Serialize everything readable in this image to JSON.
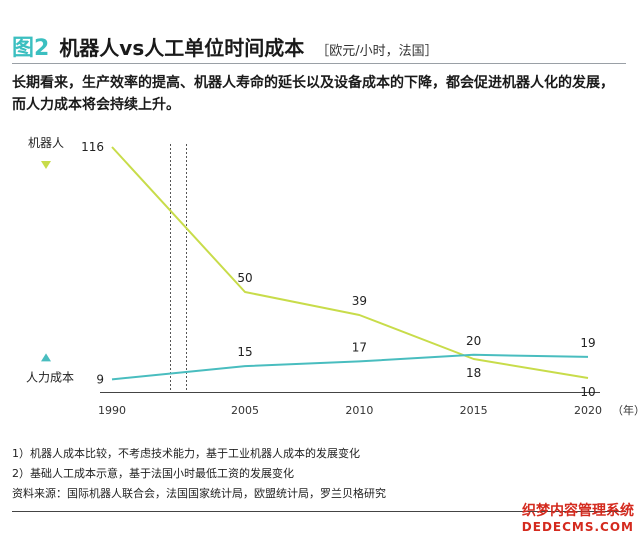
{
  "header": {
    "figure_label": "图2",
    "title": "机器人vs人工单位时间成本",
    "unit": "［欧元/小时，法国］",
    "subtitle": "长期看来，生产效率的提高、机器人寿命的延长以及设备成本的下降，都会促进机器人化的发展，而人力成本将会持续上升。"
  },
  "colors": {
    "accent": "#3bbfc0",
    "robot_series": "#c8dc4a",
    "labor_series": "#49bdbf",
    "watermark": "#d42a1e"
  },
  "chart_data": {
    "type": "line",
    "title": "机器人vs人工单位时间成本",
    "unit": "［欧元/小时，法国］",
    "x_unit_label": "（年）",
    "x_ticks": [
      "1990",
      "2005",
      "2010",
      "2015",
      "2020"
    ],
    "x_domain": [
      1990,
      2020
    ],
    "break_between": [
      1990,
      2005
    ],
    "series": [
      {
        "name": "机器人",
        "marker": "down-triangle",
        "color": "#c8dc4a",
        "points": [
          {
            "x": 1990,
            "y": 116,
            "label": "116",
            "label_pos": "left"
          },
          {
            "x": 2005,
            "y": 50,
            "label": "50",
            "label_pos": "above"
          },
          {
            "x": 2010,
            "y": 39,
            "label": "39",
            "label_pos": "above"
          },
          {
            "x": 2015,
            "y": 18,
            "label": "18",
            "label_pos": "below"
          },
          {
            "x": 2020,
            "y": 10,
            "label": "10",
            "label_pos": "below"
          }
        ]
      },
      {
        "name": "人力成本",
        "marker": "up-triangle",
        "color": "#49bdbf",
        "points": [
          {
            "x": 1990,
            "y": 9,
            "label": "9",
            "label_pos": "left"
          },
          {
            "x": 2005,
            "y": 15,
            "label": "15",
            "label_pos": "above"
          },
          {
            "x": 2010,
            "y": 17,
            "label": "17",
            "label_pos": "above"
          },
          {
            "x": 2015,
            "y": 20,
            "label": "20",
            "label_pos": "above"
          },
          {
            "x": 2020,
            "y": 19,
            "label": "19",
            "label_pos": "above"
          }
        ]
      }
    ]
  },
  "notes": {
    "note1": "1）机器人成本比较，不考虑技术能力，基于工业机器人成本的发展变化",
    "note2": "2）基础人工成本示意，基于法国小时最低工资的发展变化",
    "source": "资料来源：国际机器人联合会，法国国家统计局，欧盟统计局，罗兰贝格研究"
  },
  "watermark": {
    "line1": "织梦内容管理系统",
    "line2": "DEDECMS.COM"
  }
}
